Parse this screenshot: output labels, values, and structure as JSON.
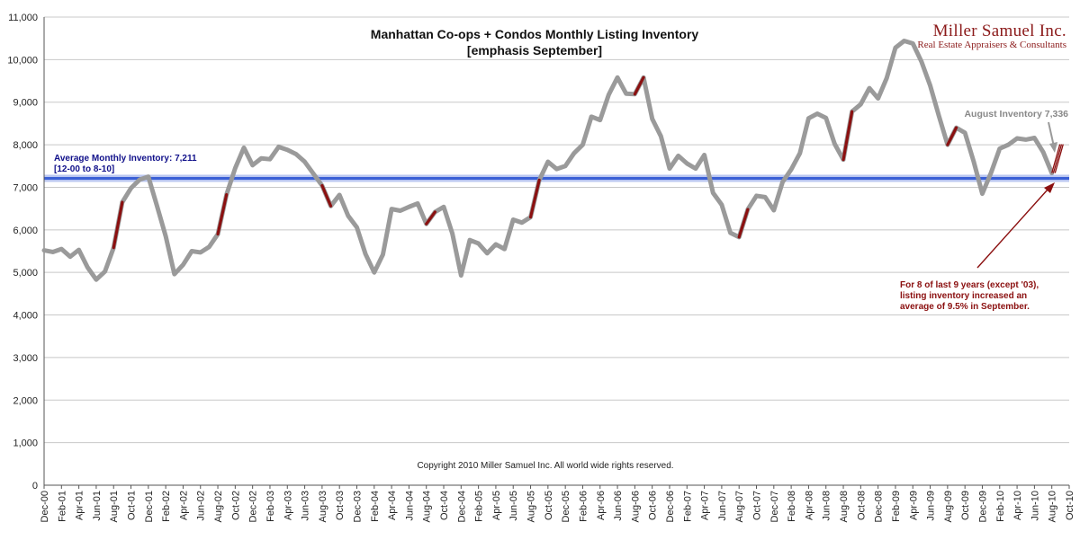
{
  "chart_data": {
    "type": "line",
    "title_line1": "Manhattan Co-ops + Condos Monthly Listing Inventory",
    "title_line2": "[emphasis September]",
    "xlabel": "",
    "ylabel": "",
    "ylim": [
      0,
      11000
    ],
    "y_ticks": [
      "0",
      "1,000",
      "2,000",
      "3,000",
      "4,000",
      "5,000",
      "6,000",
      "7,000",
      "8,000",
      "9,000",
      "10,000",
      "11,000"
    ],
    "x_tick_labels": [
      "Dec-00",
      "Feb-01",
      "Apr-01",
      "Jun-01",
      "Aug-01",
      "Oct-01",
      "Dec-01",
      "Feb-02",
      "Apr-02",
      "Jun-02",
      "Aug-02",
      "Oct-02",
      "Dec-02",
      "Feb-03",
      "Apr-03",
      "Jun-03",
      "Aug-03",
      "Oct-03",
      "Dec-03",
      "Feb-04",
      "Apr-04",
      "Jun-04",
      "Aug-04",
      "Oct-04",
      "Dec-04",
      "Feb-05",
      "Apr-05",
      "Jun-05",
      "Aug-05",
      "Oct-05",
      "Dec-05",
      "Feb-06",
      "Apr-06",
      "Jun-06",
      "Aug-06",
      "Oct-06",
      "Dec-06",
      "Feb-07",
      "Apr-07",
      "Jun-07",
      "Aug-07",
      "Oct-07",
      "Dec-07",
      "Feb-08",
      "Apr-08",
      "Jun-08",
      "Aug-08",
      "Oct-08",
      "Dec-08",
      "Feb-09",
      "Apr-09",
      "Jun-09",
      "Aug-09",
      "Oct-09",
      "Dec-09",
      "Feb-10",
      "Apr-10",
      "Jun-10",
      "Aug-10",
      "Oct-10"
    ],
    "grid": true,
    "series": [
      {
        "name": "",
        "color": "#9a9a9a",
        "start_month": "Dec-00",
        "values": [
          5520,
          5480,
          5550,
          5370,
          5530,
          5120,
          4830,
          5020,
          5580,
          6650,
          6980,
          7180,
          7250,
          6560,
          5850,
          4960,
          5180,
          5500,
          5470,
          5600,
          5900,
          6830,
          7450,
          7930,
          7520,
          7680,
          7660,
          7950,
          7880,
          7780,
          7600,
          7320,
          7040,
          6560,
          6820,
          6330,
          6060,
          5430,
          5000,
          5420,
          6490,
          6450,
          6540,
          6620,
          6140,
          6420,
          6540,
          5910,
          4930,
          5760,
          5680,
          5450,
          5660,
          5550,
          6240,
          6170,
          6300,
          7170,
          7600,
          7430,
          7500,
          7800,
          8000,
          8660,
          8580,
          9180,
          9580,
          9200,
          9190,
          9580,
          8610,
          8200,
          7440,
          7740,
          7560,
          7440,
          7760,
          6870,
          6590,
          5930,
          5830,
          6480,
          6800,
          6770,
          6460,
          7120,
          7420,
          7800,
          8620,
          8730,
          8630,
          8020,
          7650,
          8780,
          8950,
          9330,
          9090,
          9570,
          10280,
          10440,
          10380,
          9950,
          9390,
          8680,
          8000,
          8400,
          8280,
          7610,
          6850,
          7340,
          7910,
          8000,
          8150,
          8120,
          8160,
          7830,
          7336
        ],
        "september_emphasis_color": "#8b1010",
        "september_emphasis": [
          {
            "from": "Aug-01",
            "to": "Sep-01"
          },
          {
            "from": "Aug-02",
            "to": "Sep-02"
          },
          {
            "from": "Aug-03",
            "to": "Sep-03"
          },
          {
            "from": "Aug-04",
            "to": "Sep-04"
          },
          {
            "from": "Aug-05",
            "to": "Sep-05"
          },
          {
            "from": "Aug-06",
            "to": "Sep-06"
          },
          {
            "from": "Aug-07",
            "to": "Sep-07"
          },
          {
            "from": "Aug-08",
            "to": "Sep-08"
          },
          {
            "from": "Aug-09",
            "to": "Sep-09"
          }
        ]
      }
    ],
    "average_line": {
      "value": 7211,
      "color": "#3a5fd6",
      "label_line1": "Average Monthly Inventory: 7,211",
      "label_line2": "[12-00 to 8-10]"
    },
    "annotations": {
      "august_label": "August Inventory 7,336",
      "note_line1": "For 8 of last 9 years (except '03),",
      "note_line2": "listing inventory increased an",
      "note_line3": "average of 9.5% in September.",
      "copyright": "Copyright 2010 Miller Samuel Inc.  All world wide rights reserved."
    },
    "brand": {
      "name": "Miller Samuel Inc.",
      "tagline": "Real Estate Appraisers & Consultants"
    }
  }
}
